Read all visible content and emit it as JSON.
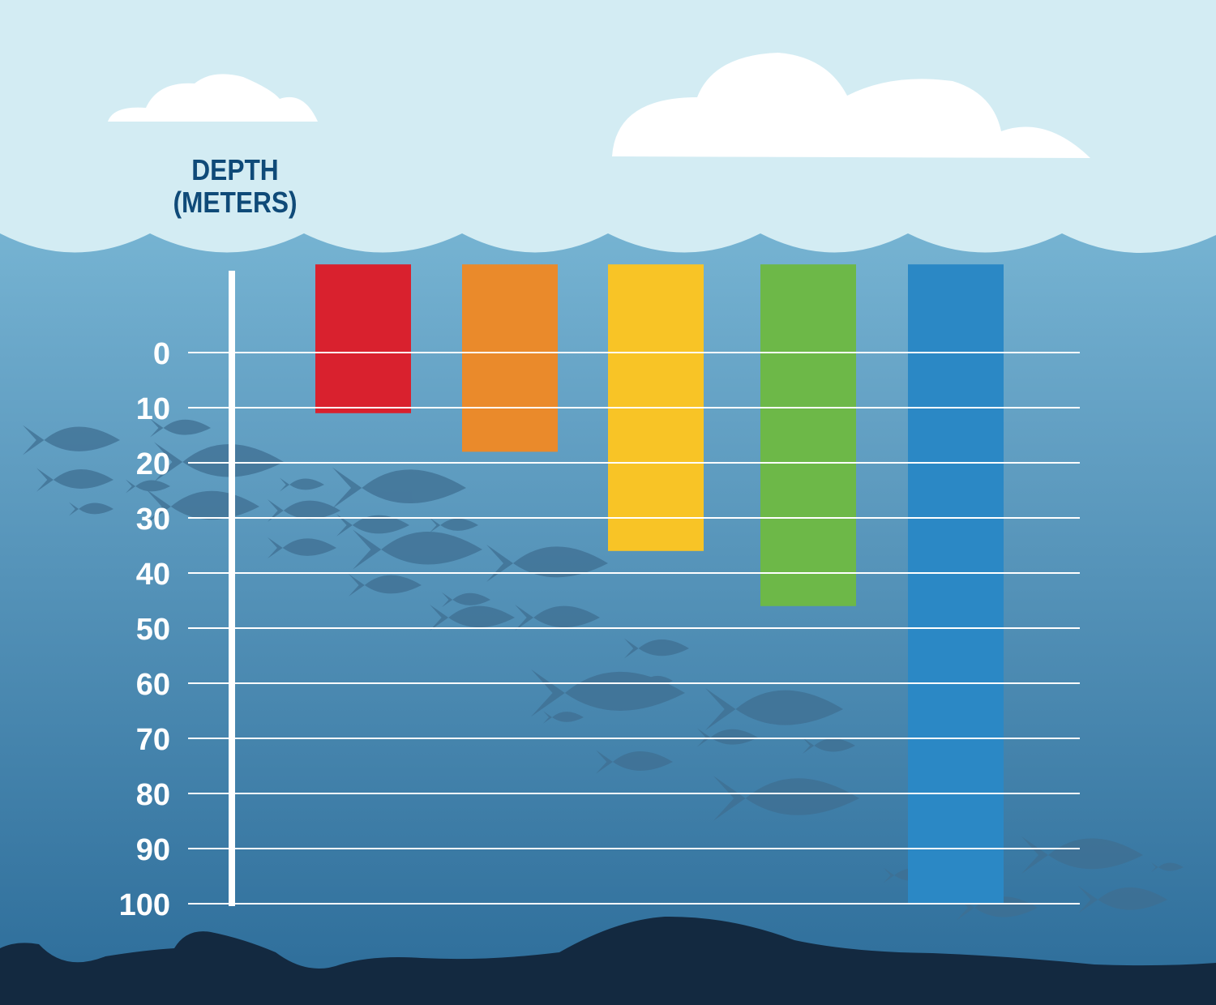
{
  "chart_data": {
    "type": "bar",
    "ylabel_lines": [
      "DEPTH",
      "(METERS)"
    ],
    "yticks": [
      0,
      10,
      20,
      30,
      40,
      50,
      60,
      70,
      80,
      90,
      100
    ],
    "ylim": [
      0,
      100
    ],
    "y_inverted": true,
    "grid": true,
    "bars": [
      {
        "top": -16,
        "bottom": 11,
        "color": "#d9212e"
      },
      {
        "top": -16,
        "bottom": 18,
        "color": "#ea8a2b"
      },
      {
        "top": -16,
        "bottom": 36,
        "color": "#f8c426"
      },
      {
        "top": -16,
        "bottom": 46,
        "color": "#6db848"
      },
      {
        "top": -16,
        "bottom": 100,
        "color": "#2b88c5"
      }
    ]
  },
  "colors": {
    "sky": "#d3ecf3",
    "water_top": "#8ccbe3",
    "water_bottom": "#2c6c99",
    "seabed": "#132940",
    "cloud": "#ffffff",
    "axis_text": "#ffffff",
    "title_text": "#0f4a78"
  }
}
